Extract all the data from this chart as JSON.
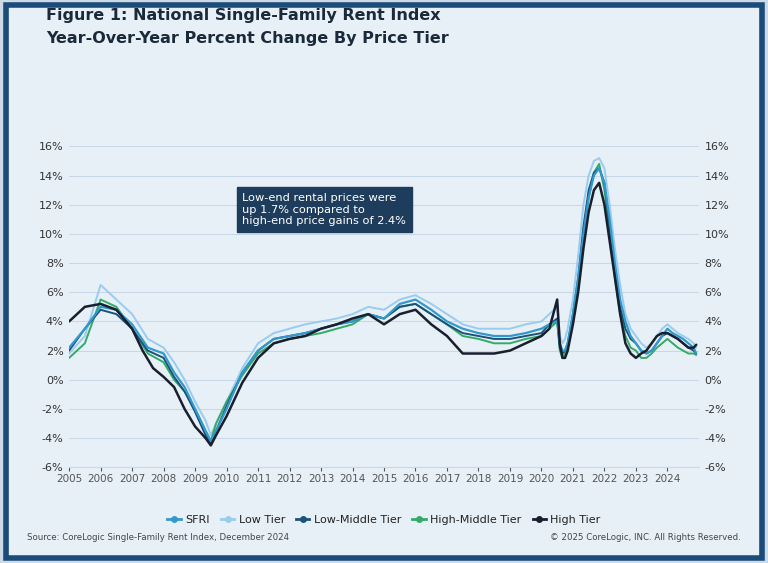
{
  "title_line1": "Figure 1: National Single-Family Rent Index",
  "title_line2": "Year-Over-Year Percent Change By Price Tier",
  "bg_outer": "#cdd9e5",
  "bg_title_area": "#e8f0f7",
  "bg_plot": "#e8f0f7",
  "border_color": "#1a4b7a",
  "annotation_text": "Low-end rental prices were\nup 1.7% compared to\nhigh-end price gains of 2.4%",
  "annotation_box_color": "#1e3d5c",
  "annotation_text_color": "#ffffff",
  "source_text": "Source: CoreLogic Single-Family Rent Index, December 2024",
  "copyright_text": "© 2025 CoreLogic, INC. All Rights Reserved.",
  "ylim": [
    -6,
    16
  ],
  "yticks": [
    -6,
    -4,
    -2,
    0,
    2,
    4,
    6,
    8,
    10,
    12,
    14,
    16
  ],
  "grid_color": "#c8d8e8",
  "series": {
    "SFRI": {
      "color": "#3399cc",
      "linewidth": 1.6,
      "zorder": 5
    },
    "Low Tier": {
      "color": "#99ccee",
      "linewidth": 1.4,
      "zorder": 3
    },
    "Low-Middle Tier": {
      "color": "#1a527a",
      "linewidth": 1.4,
      "zorder": 4
    },
    "High-Middle Tier": {
      "color": "#33aa66",
      "linewidth": 1.4,
      "zorder": 3
    },
    "High Tier": {
      "color": "#1a1f2e",
      "linewidth": 1.8,
      "zorder": 6
    }
  },
  "legend_entries": [
    {
      "label": "SFRI",
      "color": "#3399cc"
    },
    {
      "label": "Low Tier",
      "color": "#99ccee"
    },
    {
      "label": "Low-Middle Tier",
      "color": "#1a527a"
    },
    {
      "label": "High-Middle Tier",
      "color": "#33aa66"
    },
    {
      "label": "High Tier",
      "color": "#1a1f2e"
    }
  ]
}
